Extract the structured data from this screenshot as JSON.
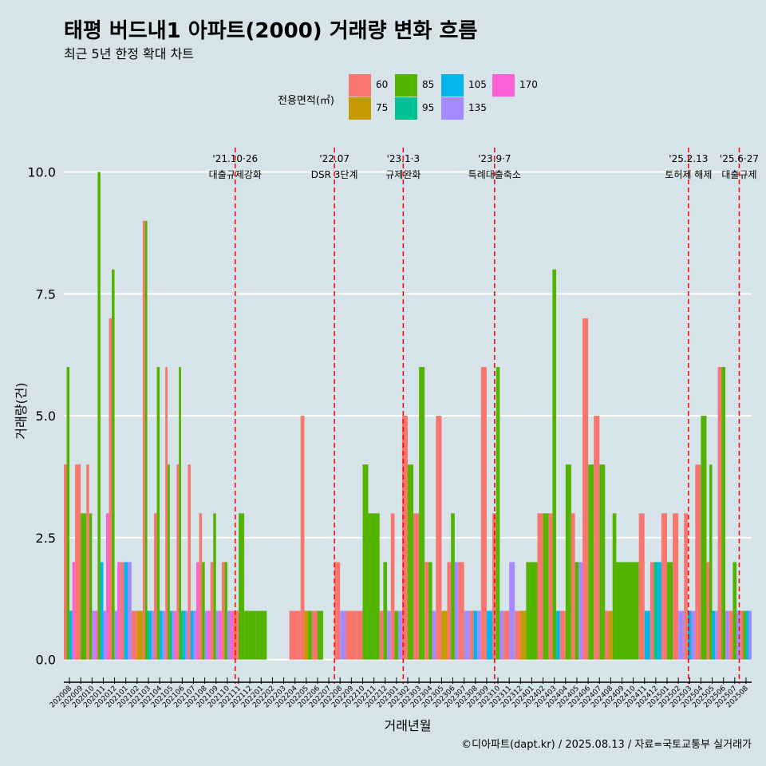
{
  "title": "태평 버드내1 아파트(2000) 거래량 변화 흐름",
  "subtitle": "최근 5년 한정 확대 차트",
  "caption": "©디아파트(dapt.kr) / 2025.08.13 / 자료=국토교통부 실거래가",
  "legend": {
    "title": "전용면적(㎡)",
    "items": [
      {
        "label": "60",
        "color": "#F8766D"
      },
      {
        "label": "75",
        "color": "#C49A00"
      },
      {
        "label": "85",
        "color": "#53B400"
      },
      {
        "label": "95",
        "color": "#00C094"
      },
      {
        "label": "105",
        "color": "#00B6EB"
      },
      {
        "label": "135",
        "color": "#A58AFF"
      },
      {
        "label": "170",
        "color": "#FB61D7"
      }
    ]
  },
  "chart_data": {
    "type": "bar",
    "xlabel": "거래년월",
    "ylabel": "거래량(건)",
    "ylim": [
      -0.3,
      10.5
    ],
    "yticks": [
      "0.0",
      "2.5",
      "5.0",
      "7.5",
      "10.0"
    ],
    "grid": true,
    "categories": [
      "202008",
      "202009",
      "202010",
      "202011",
      "202012",
      "202101",
      "202102",
      "202103",
      "202104",
      "202105",
      "202106",
      "202107",
      "202108",
      "202109",
      "202110",
      "202111",
      "202112",
      "202201",
      "202202",
      "202203",
      "202204",
      "202205",
      "202206",
      "202207",
      "202208",
      "202209",
      "202210",
      "202211",
      "202212",
      "202301",
      "202302",
      "202303",
      "202304",
      "202305",
      "202306",
      "202307",
      "202308",
      "202309",
      "202310",
      "202311",
      "202312",
      "202401",
      "202402",
      "202403",
      "202404",
      "202405",
      "202406",
      "202407",
      "202408",
      "202409",
      "202410",
      "202411",
      "202412",
      "202501",
      "202502",
      "202503",
      "202504",
      "202505",
      "202506",
      "202507",
      "202508"
    ],
    "series": [
      {
        "name": "60",
        "values": [
          4,
          4,
          4,
          0,
          7,
          2,
          1,
          9,
          3,
          6,
          4,
          4,
          3,
          2,
          2,
          1,
          0,
          0,
          0,
          0,
          1,
          5,
          1,
          0,
          2,
          1,
          1,
          0,
          1,
          3,
          5,
          3,
          2,
          5,
          2,
          2,
          1,
          6,
          3,
          1,
          1,
          0,
          3,
          3,
          1,
          3,
          7,
          5,
          1,
          0,
          0,
          3,
          2,
          3,
          3,
          3,
          4,
          2,
          6,
          1,
          1
        ]
      },
      {
        "name": "75",
        "values": [
          0,
          0,
          0,
          0,
          0,
          0,
          1,
          0,
          0,
          0,
          0,
          0,
          0,
          0,
          0,
          0,
          0,
          0,
          0,
          0,
          0,
          1,
          0,
          0,
          0,
          0,
          0,
          0,
          0,
          0,
          0,
          0,
          0,
          1,
          0,
          0,
          0,
          0,
          0,
          0,
          1,
          0,
          0,
          0,
          0,
          0,
          0,
          0,
          1,
          0,
          0,
          0,
          0,
          0,
          0,
          0,
          0,
          0,
          0,
          0,
          0
        ]
      },
      {
        "name": "85",
        "values": [
          6,
          3,
          3,
          10,
          8,
          0,
          0,
          9,
          6,
          4,
          6,
          0,
          2,
          3,
          2,
          3,
          1,
          1,
          0,
          0,
          0,
          1,
          1,
          0,
          0,
          0,
          4,
          3,
          2,
          1,
          4,
          6,
          2,
          0,
          3,
          0,
          0,
          0,
          6,
          0,
          0,
          2,
          3,
          8,
          4,
          2,
          4,
          4,
          3,
          2,
          2,
          0,
          0,
          2,
          0,
          0,
          5,
          4,
          6,
          2,
          1
        ]
      },
      {
        "name": "95",
        "values": [
          0,
          0,
          0,
          0,
          0,
          0,
          0,
          1,
          0,
          1,
          1,
          0,
          0,
          0,
          0,
          0,
          0,
          0,
          0,
          0,
          0,
          0,
          0,
          0,
          0,
          0,
          0,
          0,
          0,
          0,
          0,
          0,
          0,
          0,
          0,
          0,
          0,
          0,
          0,
          0,
          0,
          0,
          0,
          0,
          0,
          0,
          0,
          0,
          0,
          0,
          0,
          0,
          2,
          0,
          0,
          0,
          0,
          0,
          0,
          0,
          0
        ]
      },
      {
        "name": "105",
        "values": [
          1,
          0,
          0,
          2,
          0,
          2,
          0,
          1,
          1,
          0,
          1,
          1,
          0,
          0,
          0,
          0,
          0,
          0,
          0,
          0,
          0,
          0,
          0,
          0,
          0,
          0,
          0,
          0,
          0,
          0,
          0,
          0,
          0,
          0,
          0,
          0,
          1,
          1,
          0,
          0,
          0,
          0,
          0,
          1,
          0,
          0,
          0,
          0,
          0,
          0,
          0,
          1,
          2,
          0,
          0,
          1,
          0,
          1,
          0,
          0,
          1
        ]
      },
      {
        "name": "135",
        "values": [
          0,
          0,
          1,
          1,
          1,
          2,
          0,
          1,
          1,
          1,
          1,
          1,
          1,
          1,
          1,
          0,
          0,
          0,
          0,
          0,
          0,
          0,
          0,
          0,
          1,
          0,
          0,
          0,
          1,
          1,
          0,
          0,
          1,
          0,
          2,
          1,
          1,
          0,
          1,
          2,
          0,
          0,
          0,
          0,
          0,
          2,
          0,
          0,
          0,
          0,
          0,
          0,
          0,
          0,
          1,
          1,
          0,
          1,
          1,
          1,
          1
        ]
      },
      {
        "name": "170",
        "values": [
          2,
          0,
          1,
          3,
          2,
          0,
          0,
          0,
          0,
          1,
          0,
          2,
          1,
          1,
          1,
          0,
          0,
          0,
          0,
          0,
          0,
          0,
          0,
          0,
          0,
          0,
          0,
          0,
          0,
          0,
          0,
          0,
          0,
          0,
          0,
          0,
          0,
          0,
          0,
          0,
          0,
          0,
          0,
          0,
          0,
          0,
          0,
          0,
          0,
          0,
          0,
          0,
          0,
          0,
          0,
          0,
          0,
          0,
          0,
          0,
          0
        ]
      }
    ],
    "events": [
      {
        "date": "'21.10·26",
        "label": "대출규제강화",
        "after": "202110",
        "offset": 0.2
      },
      {
        "date": "'22.07",
        "label": "DSR 3단계",
        "after": "202207",
        "offset": 0.0
      },
      {
        "date": "'23.1·3",
        "label": "규제완화",
        "after": "202301",
        "offset": 0.1
      },
      {
        "date": "'23.9·7",
        "label": "특례대출축소",
        "after": "202309",
        "offset": 0.2
      },
      {
        "date": "'25.2.13",
        "label": "토허제 해제",
        "after": "202502",
        "offset": 0.4
      },
      {
        "date": "'25.6·27",
        "label": "대출규제",
        "after": "202506",
        "offset": 0.9
      }
    ]
  }
}
